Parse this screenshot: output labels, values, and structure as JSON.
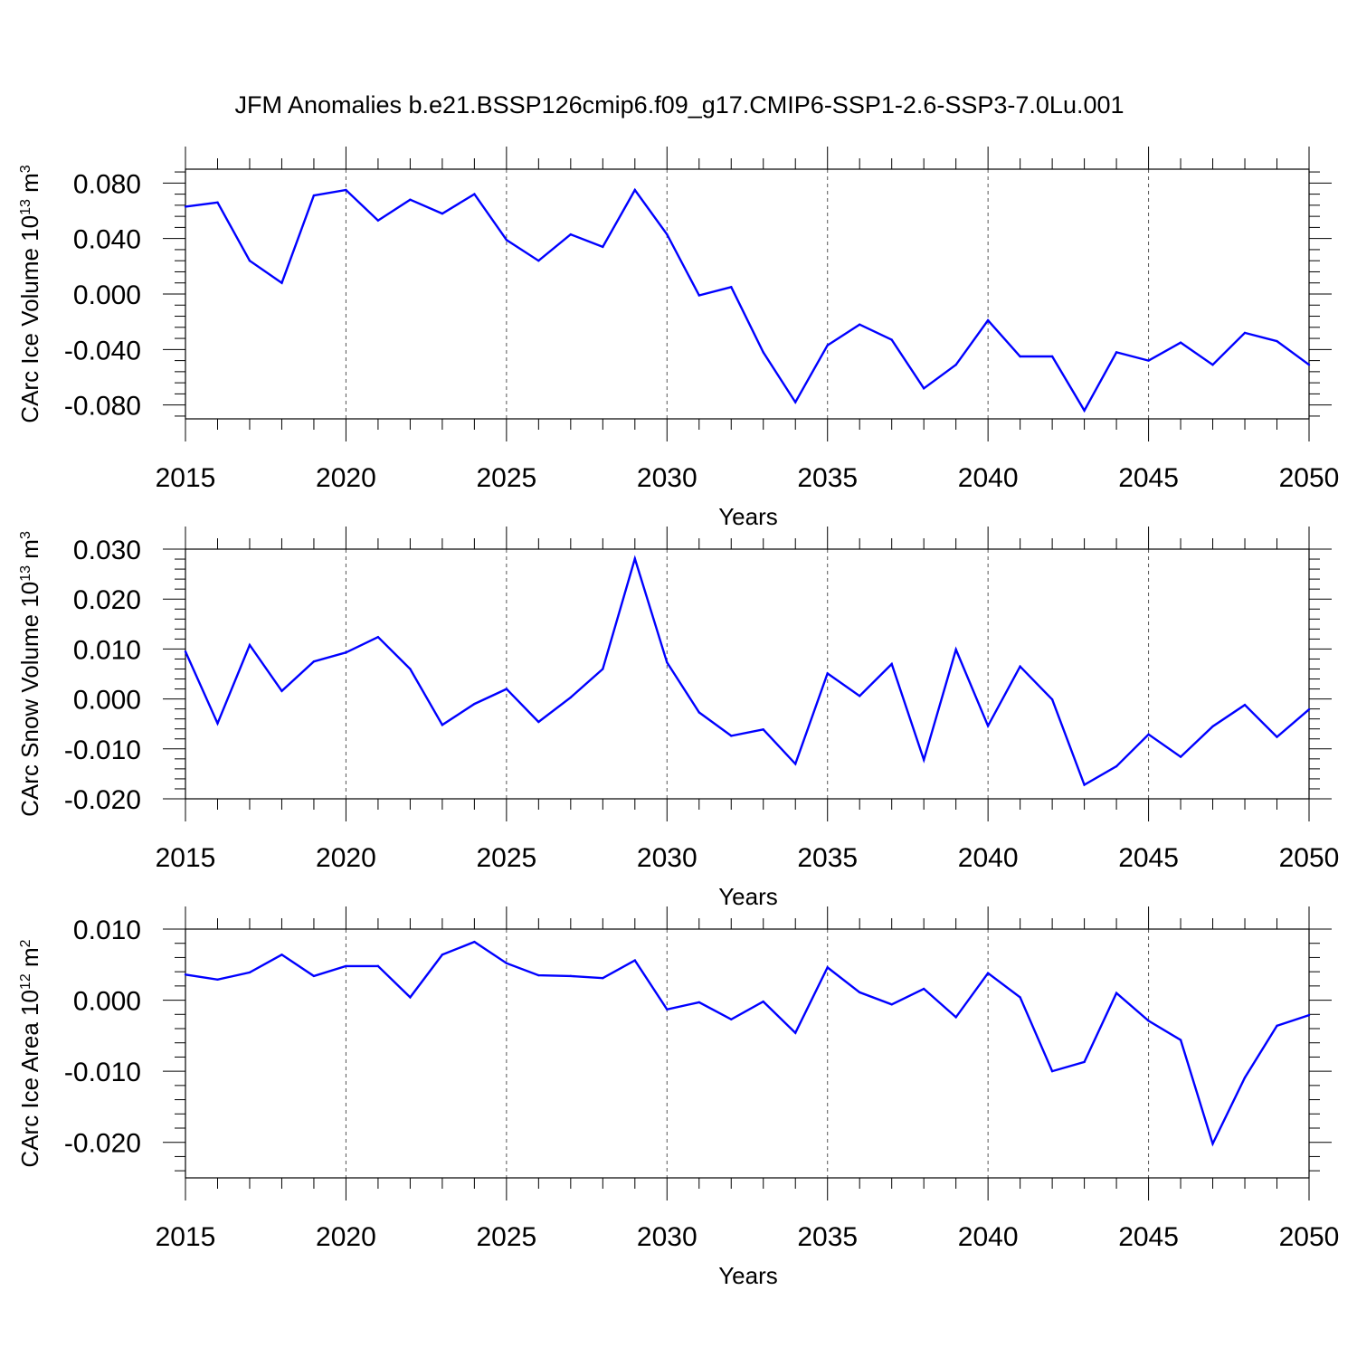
{
  "title": "JFM Anomalies b.e21.BSSP126cmip6.f09_g17.CMIP6-SSP1-2.6-SSP3-7.0Lu.001",
  "line_color": "#0000ff",
  "chart_data": [
    {
      "type": "line",
      "xlabel": "Years",
      "ylabel": {
        "main": "CArc Ice Volume 10",
        "exp1": "13",
        "mid": " m",
        "exp2": "3"
      },
      "xlim": [
        2015,
        2050
      ],
      "ylim": [
        -0.09,
        0.09
      ],
      "xticks": [
        2015,
        2020,
        2025,
        2030,
        2035,
        2040,
        2045,
        2050
      ],
      "yticks": [
        -0.08,
        -0.04,
        0.0,
        0.04,
        0.08
      ],
      "ytick_labels": [
        "-0.080",
        "-0.040",
        "0.000",
        "0.040",
        "0.080"
      ],
      "grid": "vertical dashed at major x ticks",
      "x": [
        2015,
        2016,
        2017,
        2018,
        2019,
        2020,
        2021,
        2022,
        2023,
        2024,
        2025,
        2026,
        2027,
        2028,
        2029,
        2030,
        2031,
        2032,
        2033,
        2034,
        2035,
        2036,
        2037,
        2038,
        2039,
        2040,
        2041,
        2042,
        2043,
        2044,
        2045,
        2046,
        2047,
        2048,
        2049,
        2050
      ],
      "y": [
        0.063,
        0.066,
        0.024,
        0.008,
        0.071,
        0.075,
        0.053,
        0.068,
        0.058,
        0.072,
        0.039,
        0.024,
        0.043,
        0.034,
        0.075,
        0.043,
        -0.001,
        0.005,
        -0.042,
        -0.078,
        -0.037,
        -0.022,
        -0.033,
        -0.068,
        -0.051,
        -0.019,
        -0.045,
        -0.045,
        -0.084,
        -0.042,
        -0.048,
        -0.035,
        -0.051,
        -0.028,
        -0.034,
        -0.051
      ]
    },
    {
      "type": "line",
      "xlabel": "Years",
      "ylabel": {
        "main": "CArc Snow Volume 10",
        "exp1": "13",
        "mid": " m",
        "exp2": "3"
      },
      "xlim": [
        2015,
        2050
      ],
      "ylim": [
        -0.02,
        0.03
      ],
      "xticks": [
        2015,
        2020,
        2025,
        2030,
        2035,
        2040,
        2045,
        2050
      ],
      "yticks": [
        -0.02,
        -0.01,
        0.0,
        0.01,
        0.02,
        0.03
      ],
      "ytick_labels": [
        "-0.020",
        "-0.010",
        "0.000",
        "0.010",
        "0.020",
        "0.030"
      ],
      "grid": "vertical dashed at major x ticks",
      "x": [
        2015,
        2016,
        2017,
        2018,
        2019,
        2020,
        2021,
        2022,
        2023,
        2024,
        2025,
        2026,
        2027,
        2028,
        2029,
        2030,
        2031,
        2032,
        2033,
        2034,
        2035,
        2036,
        2037,
        2038,
        2039,
        2040,
        2041,
        2042,
        2043,
        2044,
        2045,
        2046,
        2047,
        2048,
        2049,
        2050
      ],
      "y": [
        0.0095,
        -0.0049,
        0.0108,
        0.0016,
        0.0075,
        0.0093,
        0.0124,
        0.006,
        -0.0052,
        -0.001,
        0.002,
        -0.0046,
        0.0003,
        0.006,
        0.0281,
        0.0073,
        -0.0027,
        -0.0074,
        -0.0061,
        -0.013,
        0.0051,
        0.0006,
        0.007,
        -0.0122,
        0.0099,
        -0.0054,
        0.0065,
        -0.0001,
        -0.0172,
        -0.0135,
        -0.0071,
        -0.0116,
        -0.0055,
        -0.0012,
        -0.0076,
        -0.0021
      ]
    },
    {
      "type": "line",
      "xlabel": "Years",
      "ylabel": {
        "main": "CArc Ice Area 10",
        "exp1": "12",
        "mid": " m",
        "exp2": "2"
      },
      "xlim": [
        2015,
        2050
      ],
      "ylim": [
        -0.025,
        0.01
      ],
      "xticks": [
        2015,
        2020,
        2025,
        2030,
        2035,
        2040,
        2045,
        2050
      ],
      "yticks": [
        -0.02,
        -0.01,
        0.0,
        0.01
      ],
      "ytick_labels": [
        "-0.020",
        "-0.010",
        "0.000",
        "0.010"
      ],
      "grid": "vertical dashed at major x ticks",
      "x": [
        2015,
        2016,
        2017,
        2018,
        2019,
        2020,
        2021,
        2022,
        2023,
        2024,
        2025,
        2026,
        2027,
        2028,
        2029,
        2030,
        2031,
        2032,
        2033,
        2034,
        2035,
        2036,
        2037,
        2038,
        2039,
        2040,
        2041,
        2042,
        2043,
        2044,
        2045,
        2046,
        2047,
        2048,
        2049,
        2050
      ],
      "y": [
        0.0036,
        0.0029,
        0.0039,
        0.0064,
        0.0034,
        0.0048,
        0.0048,
        0.0004,
        0.0064,
        0.0082,
        0.0052,
        0.0035,
        0.0034,
        0.0031,
        0.0056,
        -0.0013,
        -0.0003,
        -0.0027,
        -0.0002,
        -0.0046,
        0.0046,
        0.0011,
        -0.0006,
        0.0016,
        -0.0024,
        0.0038,
        0.0004,
        -0.01,
        -0.0087,
        0.001,
        -0.0029,
        -0.0056,
        -0.0202,
        -0.0109,
        -0.0036,
        -0.0021
      ]
    }
  ]
}
